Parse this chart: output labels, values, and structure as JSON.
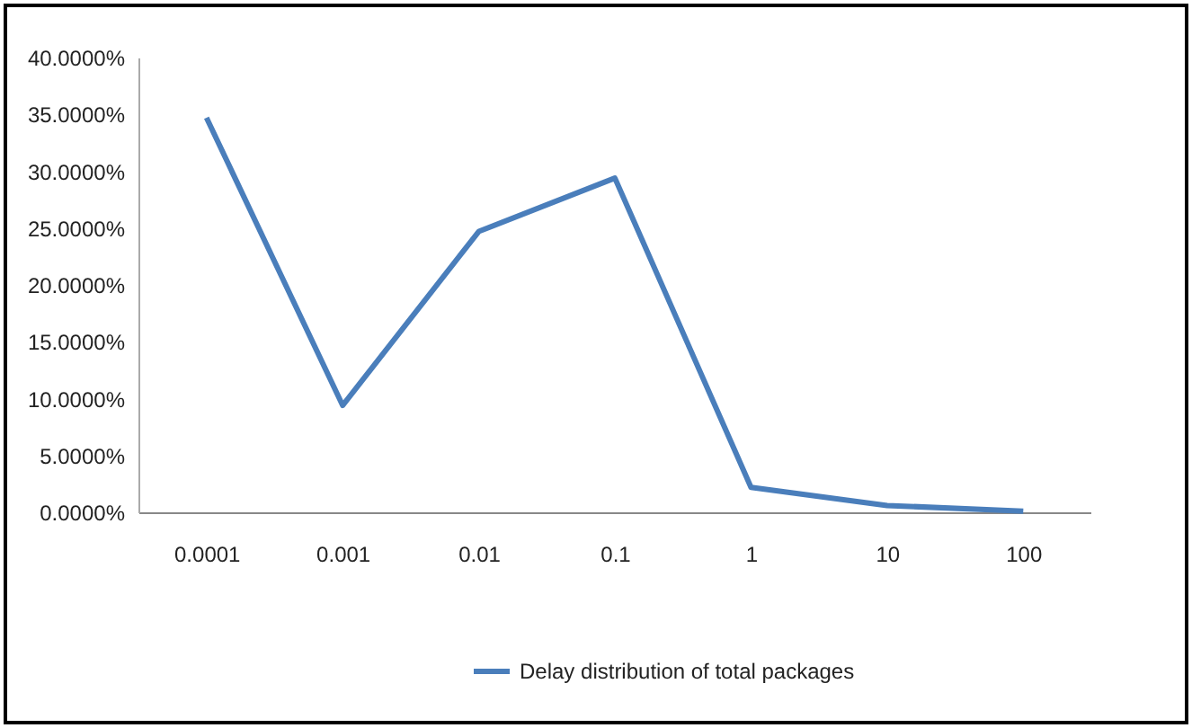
{
  "chart_data": {
    "type": "line",
    "categories": [
      "0.0001",
      "0.001",
      "0.01",
      "0.1",
      "1",
      "10",
      "100"
    ],
    "series": [
      {
        "name": "Delay distribution of total packages",
        "color": "#4a7ebb",
        "values": [
          34.7,
          9.4,
          24.7,
          29.4,
          2.2,
          0.6,
          0.1
        ]
      }
    ],
    "ylim": [
      0,
      40
    ],
    "yticks": [
      {
        "value": 0,
        "label": "0.0000%"
      },
      {
        "value": 5,
        "label": "5.0000%"
      },
      {
        "value": 10,
        "label": "10.0000%"
      },
      {
        "value": 15,
        "label": "15.0000%"
      },
      {
        "value": 20,
        "label": "20.0000%"
      },
      {
        "value": 25,
        "label": "25.0000%"
      },
      {
        "value": 30,
        "label": "30.0000%"
      },
      {
        "value": 35,
        "label": "35.0000%"
      },
      {
        "value": 40,
        "label": "40.0000%"
      }
    ],
    "grid": false,
    "legend": "bottom",
    "marker": "none",
    "line_style": "solid"
  }
}
